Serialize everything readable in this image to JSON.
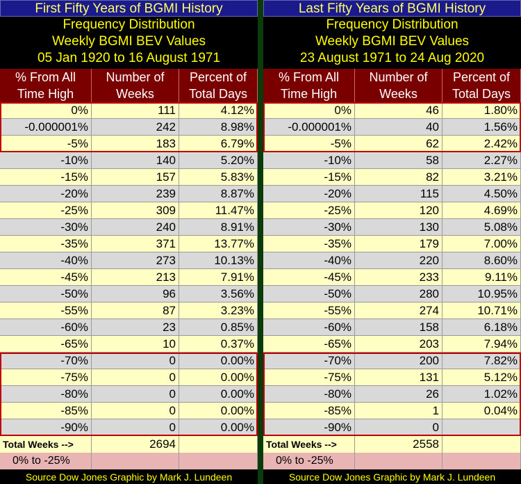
{
  "left": {
    "titles": [
      "First Fifty Years of BGMI History",
      "Frequency Distribution",
      "Weekly BGMI BEV Values",
      "05 Jan 1920 to 16 August 1971"
    ],
    "headers": [
      "% From All Time High",
      "Number of Weeks",
      "Percent of Total Days"
    ],
    "rows": [
      [
        "0%",
        "111",
        "4.12%"
      ],
      [
        "-0.000001%",
        "242",
        "8.98%"
      ],
      [
        "-5%",
        "183",
        "6.79%"
      ],
      [
        "-10%",
        "140",
        "5.20%"
      ],
      [
        "-15%",
        "157",
        "5.83%"
      ],
      [
        "-20%",
        "239",
        "8.87%"
      ],
      [
        "-25%",
        "309",
        "11.47%"
      ],
      [
        "-30%",
        "240",
        "8.91%"
      ],
      [
        "-35%",
        "371",
        "13.77%"
      ],
      [
        "-40%",
        "273",
        "10.13%"
      ],
      [
        "-45%",
        "213",
        "7.91%"
      ],
      [
        "-50%",
        "96",
        "3.56%"
      ],
      [
        "-55%",
        "87",
        "3.23%"
      ],
      [
        "-60%",
        "23",
        "0.85%"
      ],
      [
        "-65%",
        "10",
        "0.37%"
      ],
      [
        "-70%",
        "0",
        "0.00%"
      ],
      [
        "-75%",
        "0",
        "0.00%"
      ],
      [
        "-80%",
        "0",
        "0.00%"
      ],
      [
        "-85%",
        "0",
        "0.00%"
      ],
      [
        "-90%",
        "0",
        "0.00%"
      ]
    ],
    "total_label": "Total Weeks -->",
    "total_value": "2694",
    "range_label": "0% to -25%",
    "source": "Source Dow Jones  Graphic by Mark J. Lundeen"
  },
  "right": {
    "titles": [
      "Last Fifty Years of BGMI History",
      "Frequency Distribution",
      "Weekly BGMI BEV Values",
      "23 August 1971 to 24 Aug 2020"
    ],
    "headers": [
      "% From All Time High",
      "Number of Weeks",
      "Percent of Total Days"
    ],
    "rows": [
      [
        "0%",
        "46",
        "1.80%"
      ],
      [
        "-0.000001%",
        "40",
        "1.56%"
      ],
      [
        "-5%",
        "62",
        "2.42%"
      ],
      [
        "-10%",
        "58",
        "2.27%"
      ],
      [
        "-15%",
        "82",
        "3.21%"
      ],
      [
        "-20%",
        "115",
        "4.50%"
      ],
      [
        "-25%",
        "120",
        "4.69%"
      ],
      [
        "-30%",
        "130",
        "5.08%"
      ],
      [
        "-35%",
        "179",
        "7.00%"
      ],
      [
        "-40%",
        "220",
        "8.60%"
      ],
      [
        "-45%",
        "233",
        "9.11%"
      ],
      [
        "-50%",
        "280",
        "10.95%"
      ],
      [
        "-55%",
        "274",
        "10.71%"
      ],
      [
        "-60%",
        "158",
        "6.18%"
      ],
      [
        "-65%",
        "203",
        "7.94%"
      ],
      [
        "-70%",
        "200",
        "7.82%"
      ],
      [
        "-75%",
        "131",
        "5.12%"
      ],
      [
        "-80%",
        "26",
        "1.02%"
      ],
      [
        "-85%",
        "1",
        "0.04%"
      ],
      [
        "-90%",
        "0",
        ""
      ]
    ],
    "total_label": "Total Weeks -->",
    "total_value": "2558",
    "range_label": "0% to -25%",
    "source": "Source Dow Jones  Graphic by Mark J. Lundeen"
  }
}
